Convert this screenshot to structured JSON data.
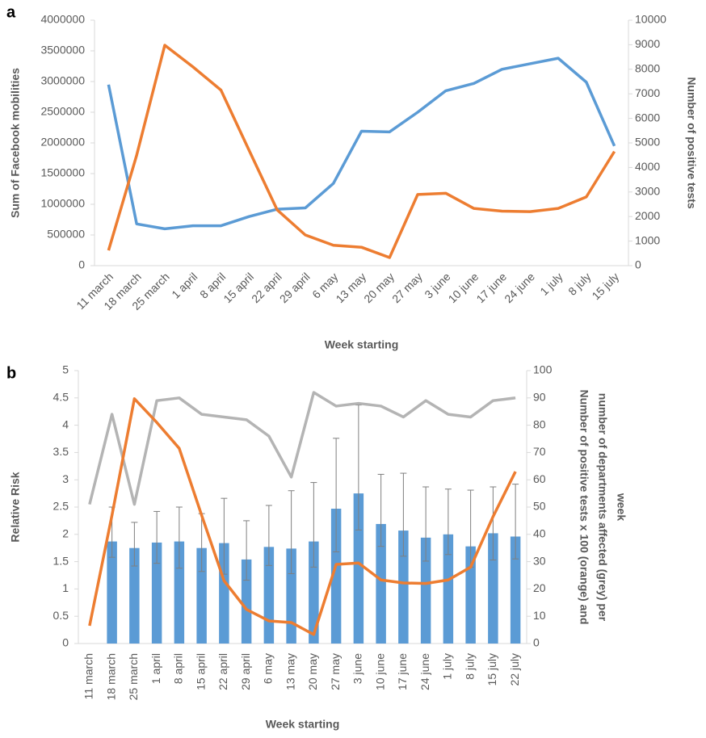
{
  "chart_data": [
    {
      "type": "line",
      "panel_label": "a",
      "categories": [
        "11 march",
        "18 march",
        "25 march",
        "1 april",
        "8 april",
        "15 april",
        "22 april",
        "29 april",
        "6 may",
        "13 may",
        "20 may",
        "27 may",
        "3 june",
        "10 june",
        "17 june",
        "24 june",
        "1 july",
        "8 july",
        "15 july"
      ],
      "x_label": "Week starting",
      "y_label": "Sum of Facebook mobilities",
      "y2_label": [
        "Number of positive tests"
      ],
      "ylim": [
        0,
        4000000
      ],
      "yticks": [
        0,
        500000,
        1000000,
        1500000,
        2000000,
        2500000,
        3000000,
        3500000,
        4000000
      ],
      "y2lim": [
        0,
        10000
      ],
      "y2ticks": [
        0,
        1000,
        2000,
        3000,
        4000,
        5000,
        6000,
        7000,
        8000,
        9000,
        10000
      ],
      "series": [
        {
          "type": "line",
          "color": "#5b9bd5",
          "values": [
            2950000,
            680000,
            600000,
            650000,
            650000,
            800000,
            920000,
            940000,
            1340000,
            2190000,
            2180000,
            2500000,
            2850000,
            2970000,
            3200000,
            3290000,
            3380000,
            2990000,
            1950000
          ]
        },
        {
          "type": "line",
          "axis": "y2",
          "color": "#ed7d31",
          "values": [
            620,
            4500,
            8980,
            8100,
            7150,
            4700,
            2270,
            1250,
            830,
            750,
            330,
            2900,
            2950,
            2330,
            2220,
            2200,
            2330,
            2800,
            4650
          ]
        }
      ]
    },
    {
      "type": "bar",
      "panel_label": "b",
      "categories": [
        "11 march",
        "18 march",
        "25 march",
        "1 april",
        "8 april",
        "15 april",
        "22 april",
        "29 april",
        "6 may",
        "13 may",
        "20 may",
        "27 may",
        "3 june",
        "10 june",
        "17 june",
        "24 june",
        "1 july",
        "8 july",
        "15 july",
        "22 july"
      ],
      "x_label": "Week starting",
      "y_label": "Relative Risk",
      "y2_label": [
        "Number of positive tests x 100 (orange) and",
        "number of departments affected (grey) per",
        "week"
      ],
      "ylim": [
        0,
        5
      ],
      "yticks": [
        0,
        0.5,
        1,
        1.5,
        2,
        2.5,
        3,
        3.5,
        4,
        4.5,
        5
      ],
      "y2lim": [
        0,
        100
      ],
      "y2ticks": [
        0,
        10,
        20,
        30,
        40,
        50,
        60,
        70,
        80,
        90,
        100
      ],
      "series": [
        {
          "type": "bar",
          "color": "#5b9bd5",
          "error_color": "#7f7f7f",
          "values": [
            null,
            1.87,
            1.75,
            1.85,
            1.87,
            1.75,
            1.84,
            1.54,
            1.77,
            1.74,
            1.87,
            2.47,
            2.75,
            2.19,
            2.07,
            1.94,
            2.0,
            1.78,
            2.02,
            1.96
          ],
          "ci_lower": [
            null,
            1.58,
            1.42,
            1.47,
            1.38,
            1.32,
            1.27,
            1.16,
            1.43,
            1.28,
            1.4,
            1.68,
            2.08,
            1.78,
            1.6,
            1.51,
            1.63,
            1.4,
            1.53,
            1.55
          ],
          "ci_upper": [
            null,
            2.5,
            2.22,
            2.42,
            2.5,
            2.38,
            2.66,
            2.25,
            2.53,
            2.8,
            2.95,
            3.76,
            4.37,
            3.1,
            3.12,
            2.87,
            2.83,
            2.81,
            2.87,
            2.92
          ]
        },
        {
          "type": "line",
          "axis": "y2",
          "color": "#b4b4b4",
          "values": [
            51,
            84,
            51,
            89,
            90,
            84,
            83,
            82,
            76,
            61,
            92,
            87,
            88,
            87,
            83,
            89,
            84,
            83,
            89,
            90
          ]
        },
        {
          "type": "line",
          "axis": "y2",
          "color": "#ed7d31",
          "values": [
            6.5,
            47,
            89.7,
            81,
            71.5,
            47,
            23,
            12.5,
            8.3,
            7.7,
            3.3,
            29,
            29.5,
            23.3,
            22.2,
            22,
            23.3,
            28,
            46.5,
            63
          ]
        }
      ]
    }
  ]
}
